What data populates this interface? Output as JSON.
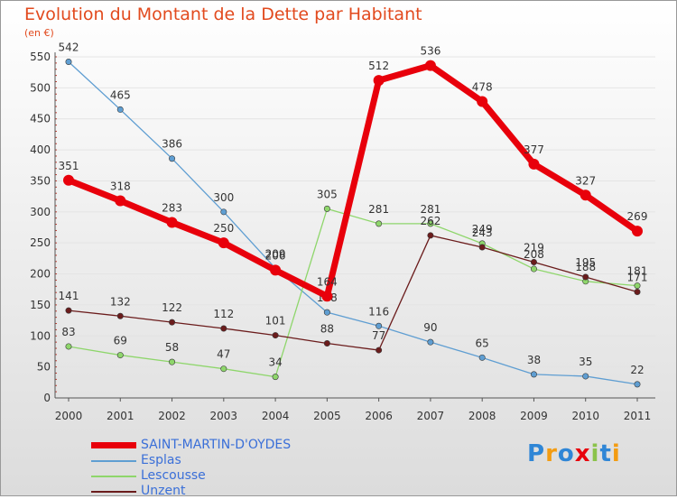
{
  "title": "Evolution du Montant de la Dette par Habitant",
  "subtitle": "(en €)",
  "logo": "Proxiti",
  "chart_data": {
    "type": "line",
    "title": "Evolution du Montant de la Dette par Habitant",
    "ylabel": "(en €)",
    "x": [
      "2000",
      "2001",
      "2002",
      "2003",
      "2004",
      "2005",
      "2006",
      "2007",
      "2008",
      "2009",
      "2010",
      "2011"
    ],
    "ylim": [
      0,
      550
    ],
    "yticks": [
      0,
      50,
      100,
      150,
      200,
      250,
      300,
      350,
      400,
      450,
      500,
      550
    ],
    "grid": "horizontal",
    "legend_position": "bottom-left",
    "series": [
      {
        "name": "SAINT-MARTIN-D'OYDES",
        "color": "#e8000b",
        "values": [
          351,
          318,
          283,
          250,
          206,
          164,
          512,
          536,
          478,
          377,
          327,
          269
        ]
      },
      {
        "name": "Esplas",
        "color": "#5f9ed2",
        "values": [
          542,
          465,
          386,
          300,
          209,
          138,
          116,
          90,
          65,
          38,
          35,
          22
        ]
      },
      {
        "name": "Lescousse",
        "color": "#8ed66b",
        "values": [
          83,
          69,
          58,
          47,
          34,
          305,
          281,
          281,
          249,
          208,
          188,
          181
        ]
      },
      {
        "name": "Unzent",
        "color": "#6b1c1c",
        "values": [
          141,
          132,
          122,
          112,
          101,
          88,
          77,
          262,
          243,
          219,
          195,
          171
        ]
      }
    ]
  }
}
